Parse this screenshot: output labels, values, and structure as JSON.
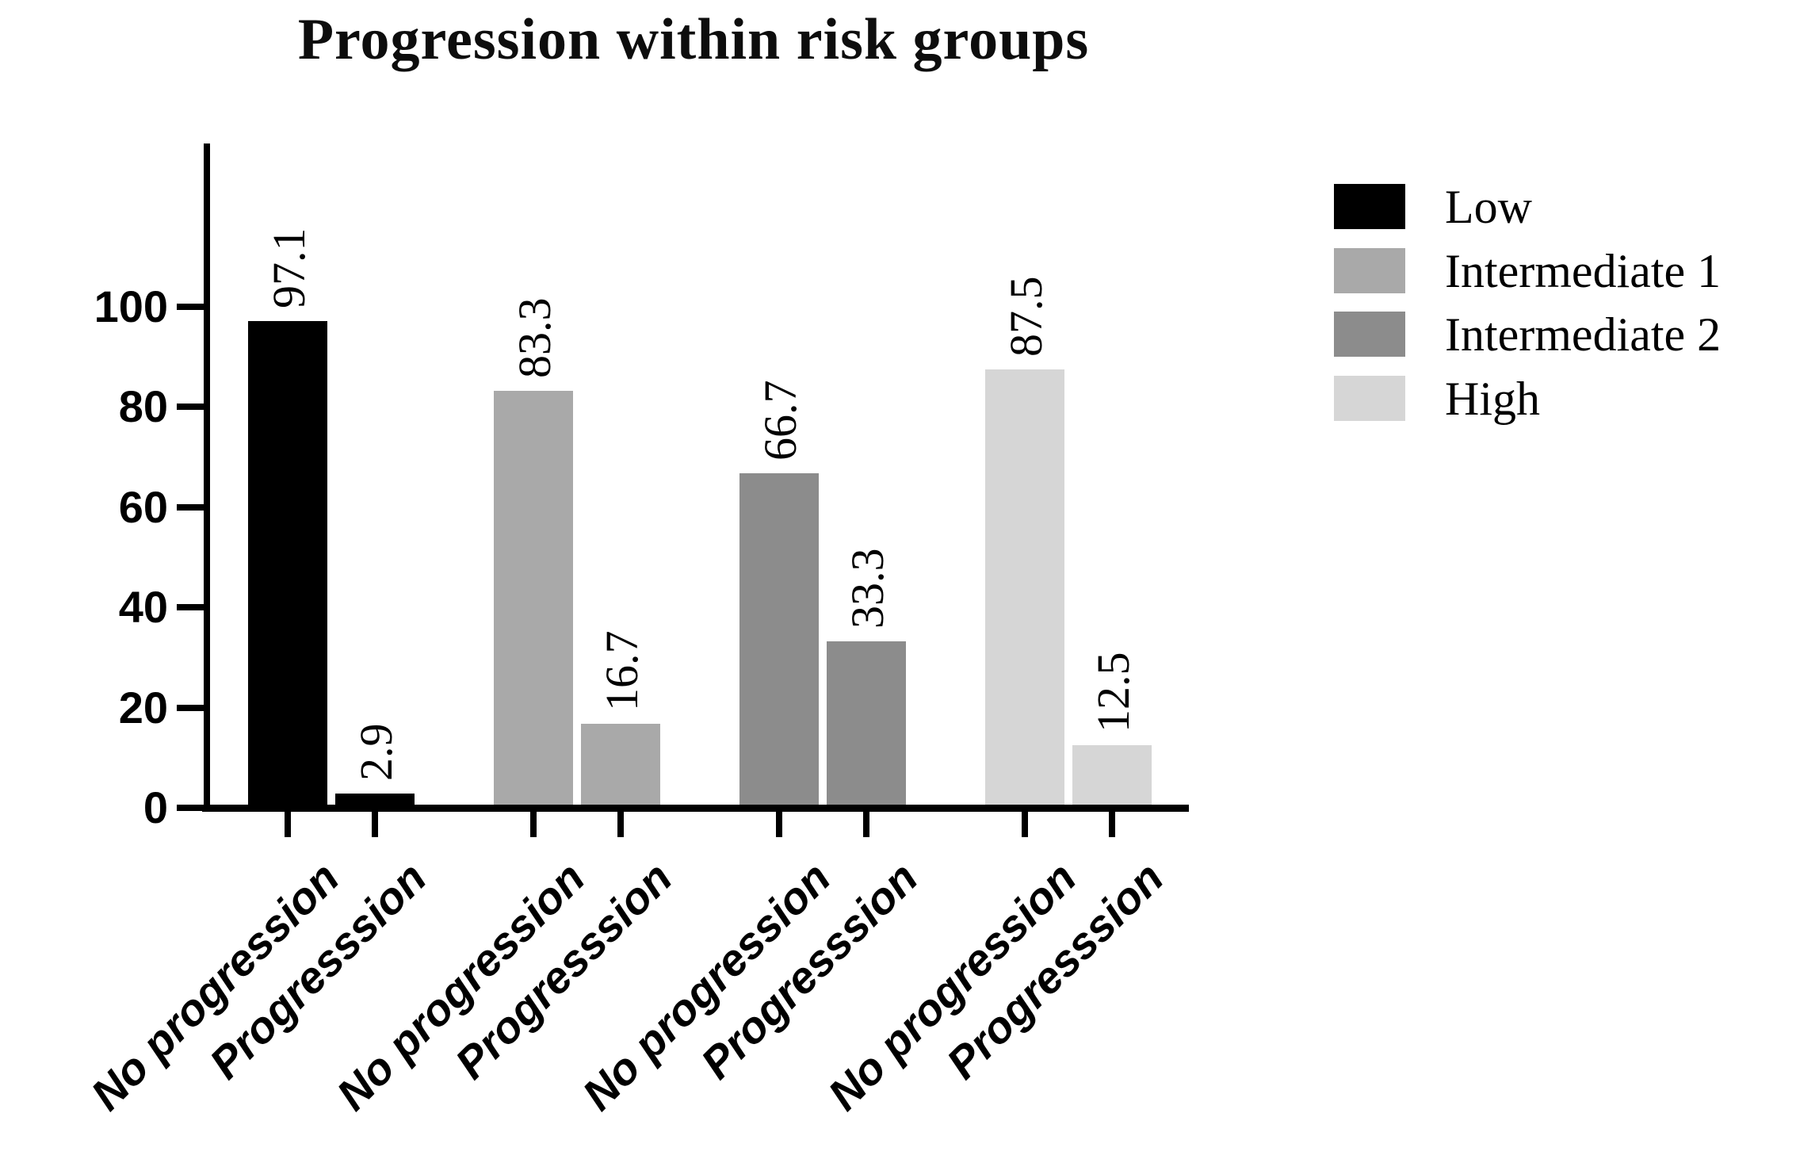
{
  "title": "Progression within risk groups",
  "chart_data": {
    "type": "bar",
    "title": "Progression within risk groups",
    "categories": [
      "No progression",
      "Progresssion"
    ],
    "series": [
      {
        "name": "Low",
        "color": "#000000",
        "values": [
          97.1,
          2.9
        ]
      },
      {
        "name": "Intermediate 1",
        "color": "#a9a9a9",
        "values": [
          83.3,
          16.7
        ]
      },
      {
        "name": "Intermediate 2",
        "color": "#8c8c8c",
        "values": [
          66.7,
          33.3
        ]
      },
      {
        "name": "High",
        "color": "#d6d6d6",
        "values": [
          87.5,
          12.5
        ]
      }
    ],
    "ylabel": "",
    "xlabel": "",
    "ylim": [
      0,
      100
    ],
    "yticks": [
      0,
      20,
      40,
      60,
      80,
      100
    ],
    "grid": false,
    "legend_position": "right",
    "bar_value_labels_rotation_deg": 90,
    "x_label_rotation_deg": 45,
    "axis_color": "#000000",
    "background_color": "#ffffff"
  }
}
